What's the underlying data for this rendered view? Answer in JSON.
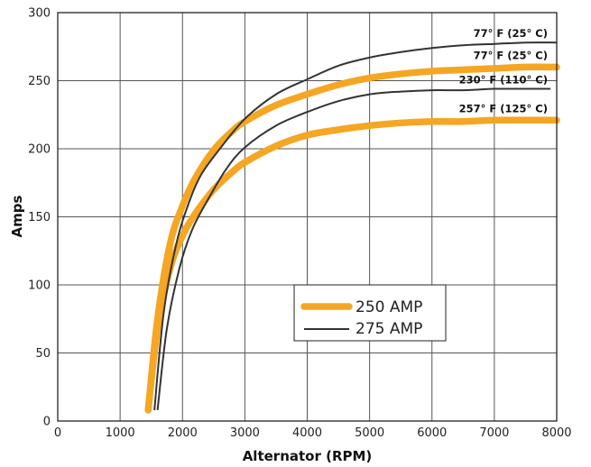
{
  "chart_data": {
    "type": "line",
    "title": "",
    "xlabel": "Alternator (RPM)",
    "ylabel": "Amps",
    "xlim": [
      0,
      8000
    ],
    "ylim": [
      0,
      300
    ],
    "xticks": [
      0,
      1000,
      2000,
      3000,
      4000,
      5000,
      6000,
      7000,
      8000
    ],
    "yticks": [
      0,
      50,
      100,
      150,
      200,
      250,
      300
    ],
    "grid": true,
    "legend_position": "center-right",
    "legend": [
      {
        "label": "250 AMP",
        "style": "thick",
        "color": "#f5a623"
      },
      {
        "label": "275 AMP",
        "style": "thin",
        "color": "#333333"
      }
    ],
    "series": [
      {
        "name": "250 AMP",
        "curve_label": "77° F (25° C)",
        "style": "thick",
        "color": "#f5a623",
        "x": [
          1450,
          1600,
          1800,
          2000,
          2200,
          2500,
          2800,
          3000,
          3500,
          4000,
          4500,
          5000,
          5500,
          6000,
          6500,
          7000,
          7500,
          8000
        ],
        "y": [
          8,
          75,
          130,
          158,
          178,
          199,
          213,
          220,
          232,
          240,
          247,
          252,
          255,
          257,
          258,
          259,
          260,
          260
        ]
      },
      {
        "name": "250 AMP",
        "curve_label": "257° F (125° C)",
        "style": "thick",
        "color": "#f5a623",
        "x": [
          1450,
          1600,
          1800,
          2000,
          2200,
          2500,
          2800,
          3000,
          3500,
          4000,
          4500,
          5000,
          5500,
          6000,
          6500,
          7000,
          7500,
          8000
        ],
        "y": [
          8,
          68,
          112,
          136,
          152,
          170,
          183,
          190,
          202,
          210,
          214,
          217,
          219,
          220,
          220,
          221,
          221,
          221
        ]
      },
      {
        "name": "275 AMP",
        "curve_label": "77° F (25° C)",
        "style": "thin",
        "color": "#333333",
        "x": [
          1550,
          1700,
          1900,
          2100,
          2300,
          2600,
          3000,
          3500,
          4000,
          4500,
          5000,
          5500,
          6000,
          6500,
          7000,
          7500,
          8000
        ],
        "y": [
          8,
          80,
          130,
          160,
          181,
          200,
          222,
          240,
          251,
          261,
          267,
          271,
          274,
          276,
          277,
          278,
          278
        ]
      },
      {
        "name": "275 AMP",
        "curve_label": "230° F (110° C)",
        "style": "thin",
        "color": "#333333",
        "x": [
          1600,
          1750,
          1950,
          2150,
          2400,
          2700,
          3000,
          3500,
          4000,
          4500,
          5000,
          5500,
          6000,
          6500,
          7000,
          7500,
          7900
        ],
        "y": [
          8,
          68,
          112,
          140,
          162,
          185,
          201,
          217,
          227,
          235,
          240,
          242,
          243,
          243,
          244,
          244,
          244
        ]
      }
    ]
  }
}
